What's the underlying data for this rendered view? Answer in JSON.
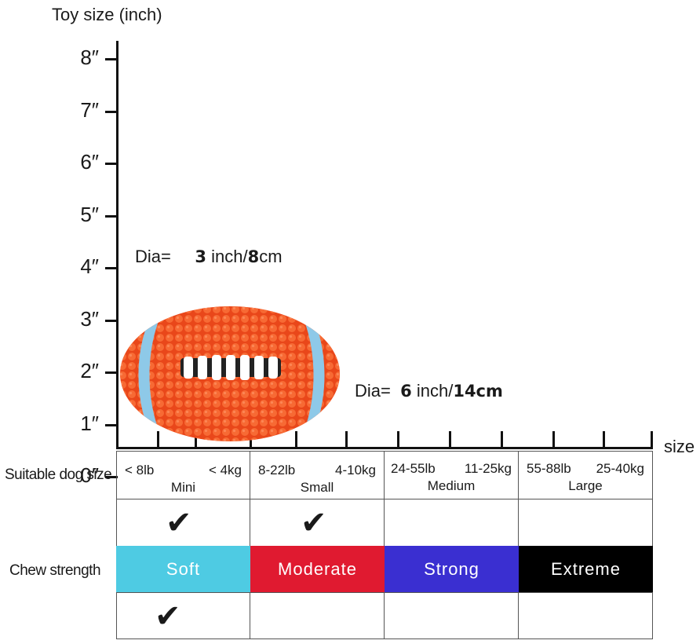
{
  "axis": {
    "title": "Toy size (inch)",
    "y_ticks": [
      "8″",
      "7″",
      "6″",
      "5″",
      "4″",
      "3″",
      "2″",
      "1″",
      "0″"
    ],
    "x_label": "size"
  },
  "dimensions": {
    "height": {
      "prefix": "Dia=",
      "value": "3",
      "unit_a": "inch/",
      "value_b": "8",
      "unit_b": "cm"
    },
    "length": {
      "prefix": "Dia=",
      "value": "6",
      "unit_a": "inch/",
      "value_b": "14cm"
    }
  },
  "table": {
    "row_labels": {
      "dog_size": "Suitable dog size",
      "chew": "Chew strength"
    },
    "sizes": [
      {
        "lb": "< 8lb",
        "kg": "< 4kg",
        "name": "Mini"
      },
      {
        "lb": "8-22lb",
        "kg": "4-10kg",
        "name": "Small"
      },
      {
        "lb": "24-55lb",
        "kg": "11-25kg",
        "name": "Medium"
      },
      {
        "lb": "55-88lb",
        "kg": "25-40kg",
        "name": "Large"
      }
    ],
    "strengths": [
      {
        "label": "Soft",
        "color": "#4ecbe3"
      },
      {
        "label": "Moderate",
        "color": "#e01a30"
      },
      {
        "label": "Strong",
        "color": "#3a2fd1"
      },
      {
        "label": "Extreme",
        "color": "#000000"
      }
    ],
    "check_glyph": "✔"
  },
  "colors": {
    "ball": "#f0531f",
    "stripe": "#8ec9e8"
  }
}
